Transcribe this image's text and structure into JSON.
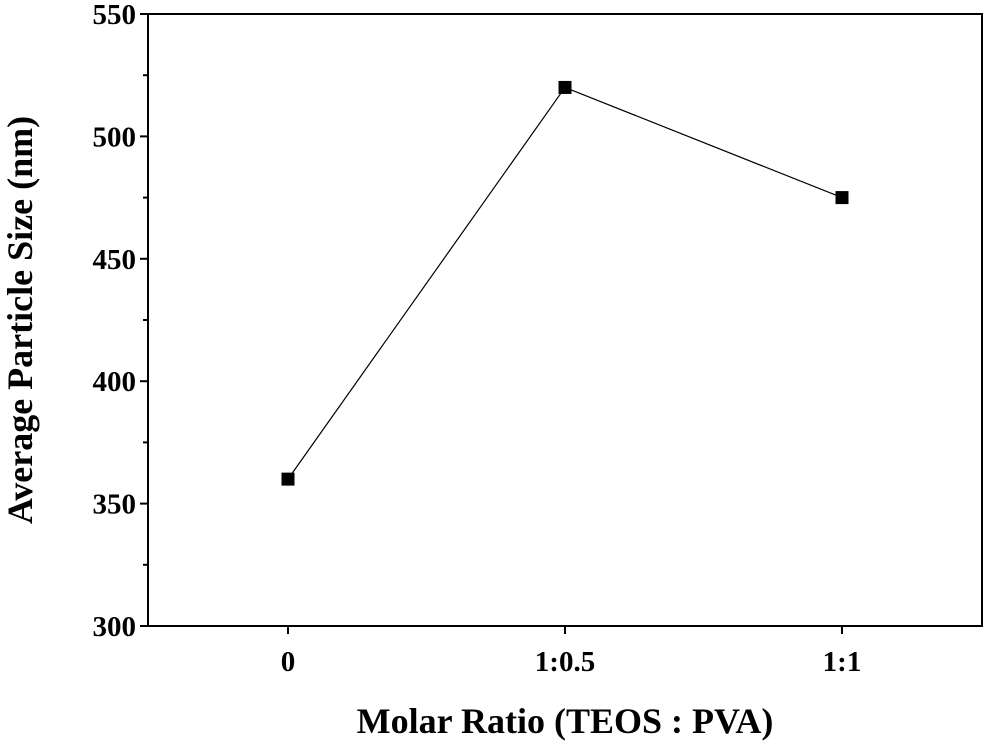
{
  "chart_data": {
    "type": "line",
    "title": "",
    "xlabel": "Molar Ratio (TEOS : PVA)",
    "ylabel": "Average Particle Size (nm)",
    "categories": [
      "0",
      "1:0.5",
      "1:1"
    ],
    "series": [
      {
        "name": "Average Particle Size",
        "values": [
          360,
          520,
          475
        ],
        "marker": "square"
      }
    ],
    "ylim": [
      300,
      550
    ],
    "yticks": [
      300,
      350,
      400,
      450,
      500,
      550
    ],
    "y_minor_step": 25,
    "grid": false,
    "legend": "none",
    "colors": {
      "axis": "#000000",
      "line": "#000000",
      "marker": "#000000",
      "background": "#ffffff"
    }
  }
}
